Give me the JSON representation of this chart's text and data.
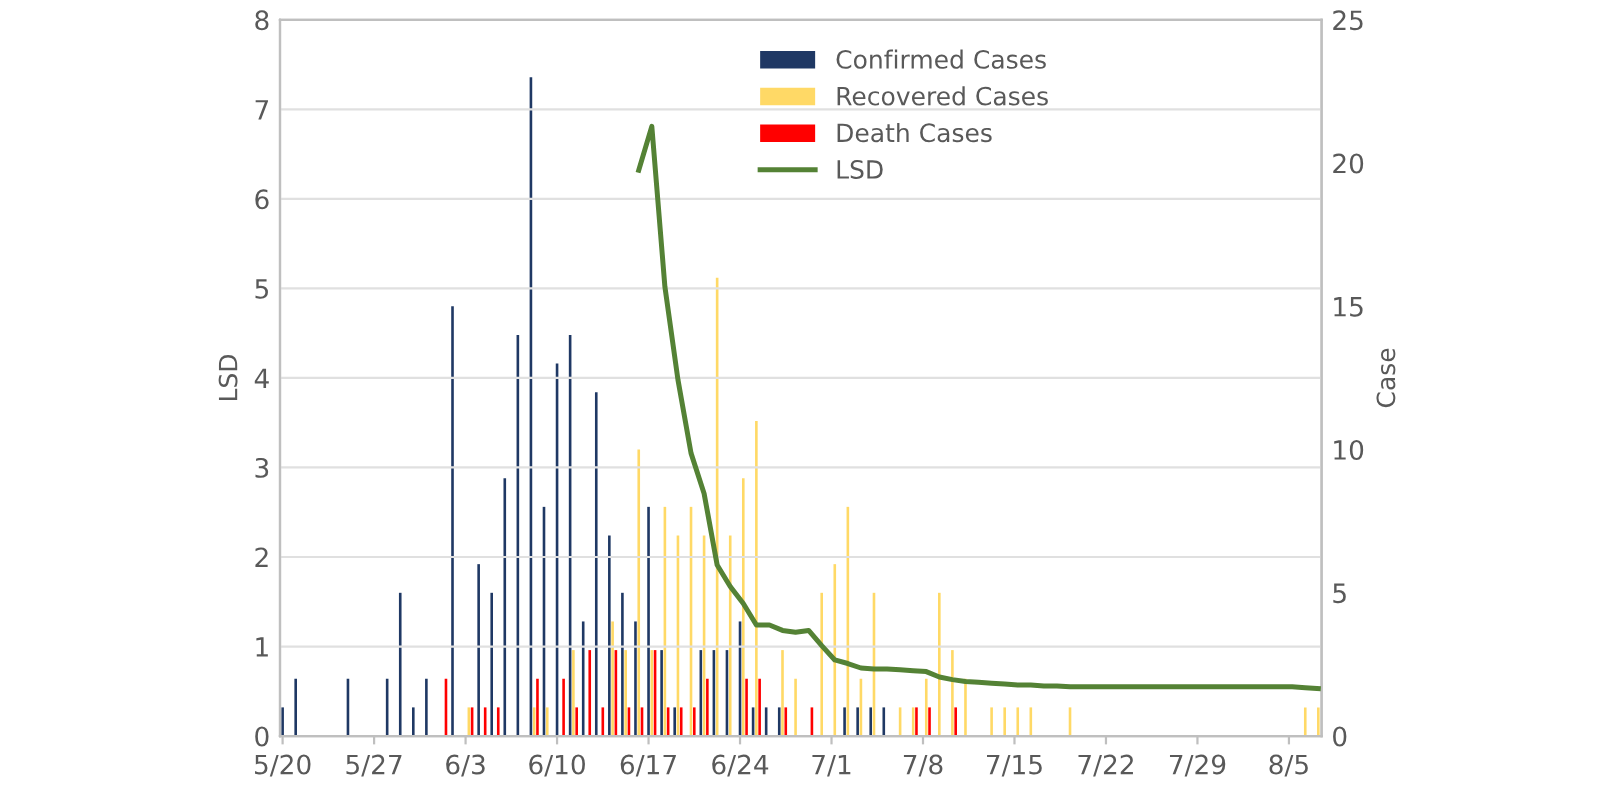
{
  "chart_data": {
    "type": "bar",
    "categories": [
      "5/20",
      null,
      null,
      null,
      null,
      null,
      null,
      "5/27",
      null,
      null,
      null,
      null,
      null,
      null,
      "6/3",
      null,
      null,
      null,
      null,
      null,
      null,
      "6/10",
      null,
      null,
      null,
      null,
      null,
      null,
      "6/17",
      null,
      null,
      null,
      null,
      null,
      null,
      "6/24",
      null,
      null,
      null,
      null,
      null,
      null,
      "7/1",
      null,
      null,
      null,
      null,
      null,
      null,
      "7/8",
      null,
      null,
      null,
      null,
      null,
      null,
      "7/15",
      null,
      null,
      null,
      null,
      null,
      null,
      "7/22",
      null,
      null,
      null,
      null,
      null,
      null,
      "7/29",
      null,
      null,
      null,
      null,
      null,
      null,
      "8/5",
      null,
      null
    ],
    "series": [
      {
        "name": "Confirmed Cases",
        "axis": "y2",
        "color": "#1f3864",
        "values": [
          1,
          2,
          null,
          null,
          null,
          2,
          null,
          null,
          2,
          5,
          1,
          2,
          null,
          15,
          null,
          6,
          5,
          9,
          14,
          23,
          8,
          13,
          14,
          4,
          12,
          7,
          5,
          4,
          8,
          3,
          1,
          null,
          3,
          3,
          3,
          4,
          1,
          1,
          1,
          null,
          null,
          null,
          null,
          1,
          1,
          1,
          1,
          null,
          null,
          null,
          null,
          null,
          null,
          null,
          null,
          null,
          null,
          null,
          null,
          null,
          null,
          null,
          null,
          null,
          null,
          null,
          null,
          null,
          null,
          null,
          null,
          null,
          null,
          null,
          null,
          null,
          null,
          null,
          null,
          null
        ]
      },
      {
        "name": "Recovered Cases",
        "axis": "y2",
        "color": "#ffd966",
        "values": [
          null,
          null,
          null,
          null,
          null,
          null,
          null,
          null,
          null,
          null,
          null,
          null,
          null,
          null,
          1,
          null,
          null,
          null,
          null,
          1,
          1,
          null,
          3,
          null,
          null,
          4,
          3,
          10,
          3,
          8,
          7,
          8,
          7,
          16,
          7,
          9,
          11,
          null,
          3,
          2,
          null,
          5,
          6,
          8,
          2,
          5,
          null,
          1,
          1,
          2,
          5,
          3,
          2,
          null,
          1,
          1,
          1,
          1,
          null,
          null,
          1,
          null,
          null,
          null,
          null,
          null,
          null,
          null,
          null,
          null,
          null,
          null,
          null,
          null,
          null,
          null,
          null,
          null,
          1,
          1
        ]
      },
      {
        "name": "Death Cases",
        "axis": "y2",
        "color": "#ff0000",
        "values": [
          null,
          null,
          null,
          null,
          null,
          null,
          null,
          null,
          null,
          null,
          null,
          null,
          2,
          null,
          1,
          1,
          1,
          null,
          null,
          2,
          null,
          2,
          1,
          3,
          1,
          3,
          1,
          1,
          3,
          1,
          1,
          1,
          2,
          null,
          null,
          2,
          2,
          null,
          1,
          null,
          1,
          null,
          null,
          null,
          null,
          null,
          null,
          null,
          1,
          1,
          null,
          1,
          null,
          null,
          null,
          null,
          null,
          null,
          null,
          null,
          null,
          null,
          null,
          null,
          null,
          null,
          null,
          null,
          null,
          null,
          null,
          null,
          null,
          null,
          null,
          null,
          null,
          null,
          null,
          null
        ]
      },
      {
        "name": "LSD",
        "type": "line",
        "axis": "y",
        "color": "#548235",
        "values": [
          null,
          null,
          null,
          null,
          null,
          null,
          null,
          null,
          null,
          null,
          null,
          null,
          null,
          null,
          null,
          null,
          null,
          null,
          null,
          null,
          null,
          null,
          null,
          null,
          null,
          null,
          null,
          6.32,
          6.81,
          5.02,
          3.98,
          3.16,
          2.71,
          1.91,
          1.67,
          1.48,
          1.24,
          1.24,
          1.18,
          1.16,
          1.18,
          1.01,
          0.85,
          0.81,
          0.76,
          0.75,
          0.75,
          0.74,
          0.73,
          0.72,
          0.66,
          0.63,
          0.61,
          0.6,
          0.59,
          0.58,
          0.57,
          0.57,
          0.56,
          0.56,
          0.55,
          0.55,
          0.55,
          0.55,
          0.55,
          0.55,
          0.55,
          0.55,
          0.55,
          0.55,
          0.55,
          0.55,
          0.55,
          0.55,
          0.55,
          0.55,
          0.55,
          0.55,
          0.54,
          0.53
        ]
      }
    ],
    "ylabel": "LSD",
    "y2label": "Case",
    "ylim": [
      0,
      8
    ],
    "yticks": [
      0,
      1,
      2,
      3,
      4,
      5,
      6,
      7,
      8
    ],
    "y2lim": [
      0,
      25
    ],
    "y2ticks": [
      0,
      5,
      10,
      15,
      20,
      25
    ],
    "grid": "y",
    "legend": "top right",
    "marker": "none",
    "line_style": "solid"
  }
}
